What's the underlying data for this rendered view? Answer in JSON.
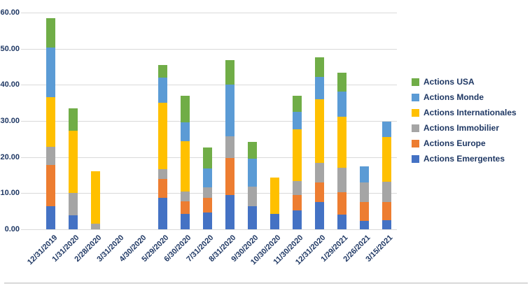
{
  "chart_data": {
    "type": "bar",
    "stacked": true,
    "title": "",
    "xlabel": "",
    "ylabel": "",
    "categories": [
      "12/31/2019",
      "1/31/2020",
      "2/28/2020",
      "3/31/2020",
      "4/30/2020",
      "5/29/2020",
      "6/30/2020",
      "7/31/2020",
      "8/31/2020",
      "9/30/2020",
      "10/30/2020",
      "11/30/2020",
      "12/31/2020",
      "1/29/2021",
      "2/26/2021",
      "3/15/2021"
    ],
    "series": [
      {
        "name": "Actions Emergentes",
        "color": "#4472C4",
        "values": [
          6.4,
          3.8,
          0,
          0,
          0,
          8.8,
          4.3,
          4.6,
          9.5,
          6.4,
          4.3,
          5.3,
          7.6,
          4.0,
          2.3,
          2.5
        ]
      },
      {
        "name": "Actions Europe",
        "color": "#ED7D31",
        "values": [
          11.4,
          0,
          0,
          0,
          0,
          5.1,
          3.4,
          4.1,
          10.2,
          0,
          0,
          4.2,
          5.4,
          6.2,
          5.3,
          5.1
        ]
      },
      {
        "name": "Actions Immobilier",
        "color": "#A5A5A5",
        "values": [
          5.1,
          6.2,
          1.6,
          0,
          0,
          2.8,
          2.7,
          2.9,
          6.0,
          5.4,
          0,
          3.8,
          5.3,
          6.8,
          5.4,
          5.5
        ]
      },
      {
        "name": "Actions Internationales",
        "color": "#FFC000",
        "values": [
          13.6,
          17.3,
          14.5,
          0,
          0,
          18.3,
          13.9,
          0,
          0,
          0,
          10.1,
          14.4,
          17.7,
          14.1,
          0,
          12.5
        ]
      },
      {
        "name": "Actions Monde",
        "color": "#5B9BD5",
        "values": [
          13.8,
          0,
          0,
          0,
          0,
          7.1,
          5.4,
          5.2,
          14.4,
          7.8,
          0,
          4.9,
          6.2,
          7.1,
          4.5,
          4.2
        ]
      },
      {
        "name": "Actions USA",
        "color": "#70AD47",
        "values": [
          8.2,
          6.2,
          0,
          0,
          0,
          3.4,
          7.3,
          5.8,
          6.7,
          4.6,
          0,
          4.3,
          5.5,
          5.2,
          0,
          0
        ]
      }
    ],
    "totals": [
      58.5,
      33.5,
      16.1,
      0,
      0,
      45.5,
      37.0,
      22.6,
      46.8,
      24.2,
      14.4,
      36.9,
      47.7,
      43.4,
      17.5,
      29.8
    ],
    "y_axis": {
      "min": 0,
      "max": 60,
      "step": 10,
      "tick_labels": [
        "0.00",
        "10.00",
        "20.00",
        "30.00",
        "40.00",
        "50.00",
        "60.00"
      ]
    },
    "grid": true,
    "legend_position": "right",
    "legend_order_top_to_bottom": [
      "Actions USA",
      "Actions Monde",
      "Actions Internationales",
      "Actions Immobilier",
      "Actions Europe",
      "Actions Emergentes"
    ],
    "text_color": "#1F3864",
    "gridline_color": "#D9D9D9"
  }
}
